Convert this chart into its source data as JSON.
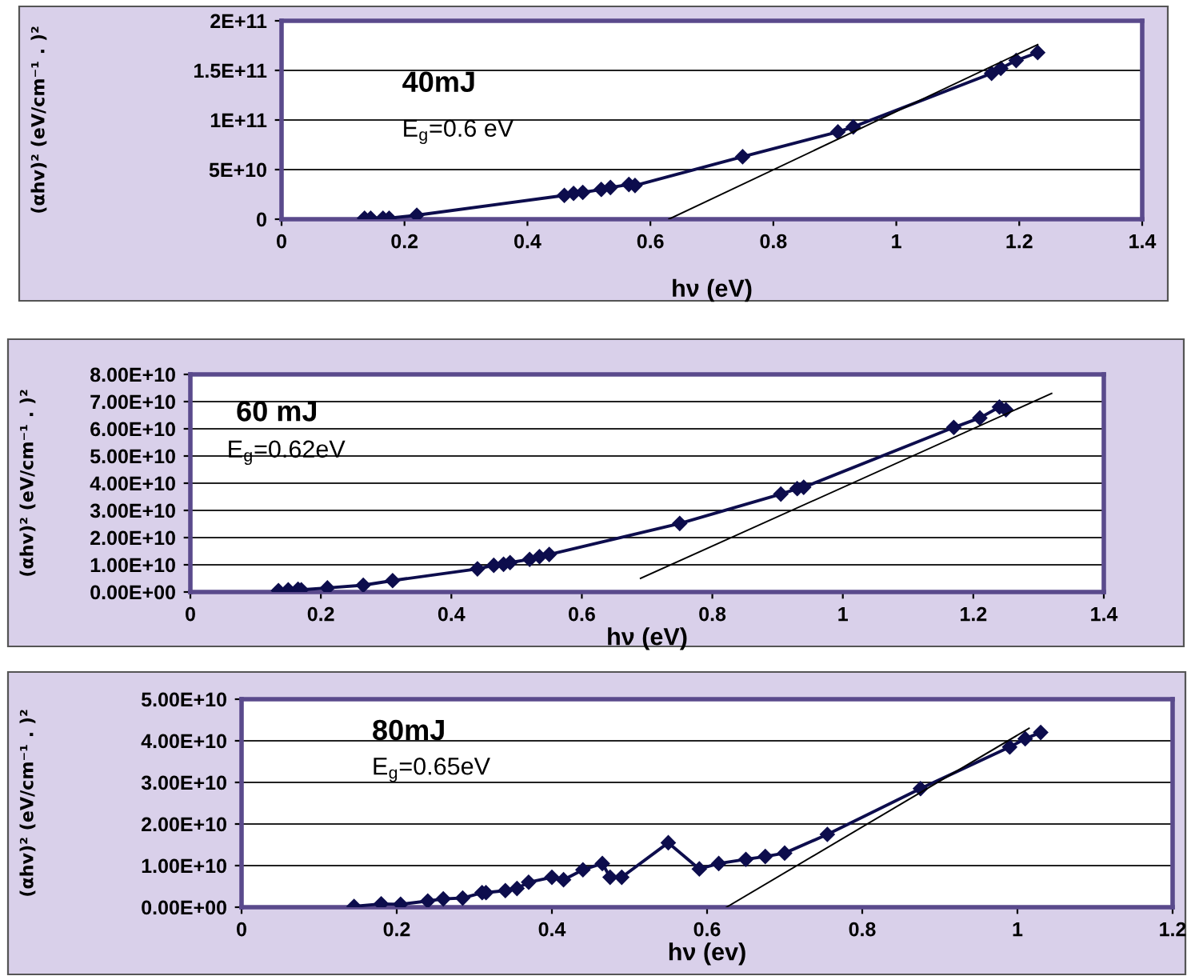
{
  "chart_data": [
    {
      "type": "line",
      "xlabel": "hν (eV)",
      "ylabel": "(αhv)² (eV/cm⁻¹ . )²",
      "annotations": [
        "40mJ",
        "E$_{g}$=0.6 eV"
      ],
      "xlim": [
        0,
        1.4
      ],
      "xticks": [
        0,
        0.2,
        0.4,
        0.6,
        0.8,
        1,
        1.2,
        1.4
      ],
      "ylim": [
        0,
        200000000000
      ],
      "yticks": [
        0,
        {
          "value": 50000000000,
          "label": "5E+10"
        },
        {
          "value": 100000000000,
          "label": "1E+11"
        },
        {
          "value": 150000000000,
          "label": "1.5E+11"
        },
        {
          "value": 200000000000,
          "label": "2E+11"
        }
      ],
      "grid": "y",
      "marker": "diamond",
      "series": [
        {
          "color": "#0d0d4d",
          "x": [
            0.135,
            0.145,
            0.165,
            0.175,
            0.22,
            0.46,
            0.475,
            0.49,
            0.52,
            0.535,
            0.565,
            0.575,
            0.75,
            0.905,
            0.93,
            1.155,
            1.17,
            1.195,
            1.23
          ],
          "values": [
            1000000000,
            1000000000,
            1000000000,
            1000000000,
            4000000000,
            24000000000,
            26000000000,
            27000000000,
            30000000000,
            32000000000,
            35000000000,
            34000000000,
            63000000000,
            88000000000,
            93000000000,
            147000000000,
            152000000000,
            160000000000,
            168000000000
          ]
        },
        {
          "color": "#000000",
          "marker": "none",
          "x": [
            0.63,
            1.23
          ],
          "values": [
            0,
            176000000000
          ]
        }
      ]
    },
    {
      "type": "line",
      "xlabel": "hν (eV)",
      "ylabel": "(αhv)² (eV/cm⁻¹ . )²",
      "annotations": [
        "60 mJ",
        "E$_{g}$=0.62eV"
      ],
      "xlim": [
        0,
        1.4
      ],
      "xticks": [
        0,
        0.2,
        0.4,
        0.6,
        0.8,
        1,
        1.2,
        1.4
      ],
      "ylim": [
        0,
        80000000000
      ],
      "yticks": [
        {
          "value": 0,
          "label": "0.00E+00"
        },
        {
          "value": 10000000000,
          "label": "1.00E+10"
        },
        {
          "value": 20000000000,
          "label": "2.00E+10"
        },
        {
          "value": 30000000000,
          "label": "3.00E+10"
        },
        {
          "value": 40000000000,
          "label": "4.00E+10"
        },
        {
          "value": 50000000000,
          "label": "5.00E+10"
        },
        {
          "value": 60000000000,
          "label": "6.00E+10"
        },
        {
          "value": 70000000000,
          "label": "7.00E+10"
        },
        {
          "value": 80000000000,
          "label": "8.00E+10"
        }
      ],
      "grid": "y",
      "marker": "diamond",
      "series": [
        {
          "color": "#0d0d4d",
          "x": [
            0.135,
            0.15,
            0.165,
            0.17,
            0.21,
            0.265,
            0.31,
            0.44,
            0.465,
            0.48,
            0.49,
            0.52,
            0.535,
            0.55,
            0.75,
            0.905,
            0.93,
            0.94,
            1.17,
            1.21,
            1.24,
            1.25
          ],
          "values": [
            500000000,
            800000000,
            1000000000,
            800000000,
            1500000000,
            2500000000,
            4200000000,
            8500000000,
            9800000000,
            10200000000,
            10800000000,
            12000000000,
            13000000000,
            13800000000,
            25200000000,
            36000000000,
            38000000000,
            38500000000,
            60500000000,
            64000000000,
            68000000000,
            67000000000
          ]
        },
        {
          "color": "#000000",
          "marker": "none",
          "x": [
            0.69,
            1.32
          ],
          "values": [
            5000000000,
            73000000000
          ]
        }
      ]
    },
    {
      "type": "line",
      "xlabel": "hν (ev)",
      "ylabel": "(αhv)² (eV/cm⁻¹ . )²",
      "annotations": [
        "80mJ",
        "E$_{g}$=0.65eV"
      ],
      "xlim": [
        0,
        1.2
      ],
      "xticks": [
        0,
        0.2,
        0.4,
        0.6,
        0.8,
        1,
        1.2
      ],
      "ylim": [
        0,
        50000000000
      ],
      "yticks": [
        {
          "value": 0,
          "label": "0.00E+00"
        },
        {
          "value": 10000000000,
          "label": "1.00E+10"
        },
        {
          "value": 20000000000,
          "label": "2.00E+10"
        },
        {
          "value": 30000000000,
          "label": "3.00E+10"
        },
        {
          "value": 40000000000,
          "label": "4.00E+10"
        },
        {
          "value": 50000000000,
          "label": "5.00E+10"
        }
      ],
      "grid": "y",
      "marker": "diamond",
      "series": [
        {
          "color": "#0d0d4d",
          "x": [
            0.145,
            0.18,
            0.205,
            0.24,
            0.26,
            0.285,
            0.31,
            0.315,
            0.34,
            0.355,
            0.37,
            0.4,
            0.415,
            0.44,
            0.465,
            0.475,
            0.49,
            0.55,
            0.59,
            0.615,
            0.65,
            0.675,
            0.7,
            0.755,
            0.875,
            0.99,
            1.01,
            1.03
          ],
          "values": [
            200000000,
            800000000,
            700000000,
            1500000000,
            2000000000,
            2200000000,
            3500000000,
            3500000000,
            4000000000,
            4500000000,
            6000000000,
            7200000000,
            6600000000,
            9000000000,
            10500000000,
            7200000000,
            7200000000,
            15500000000,
            9200000000,
            10500000000,
            11500000000,
            12200000000,
            13000000000,
            17500000000,
            28500000000,
            38500000000,
            40500000000,
            42000000000
          ]
        },
        {
          "color": "#000000",
          "marker": "none",
          "x": [
            0.625,
            1.015
          ],
          "values": [
            0,
            43000000000
          ]
        }
      ]
    }
  ]
}
